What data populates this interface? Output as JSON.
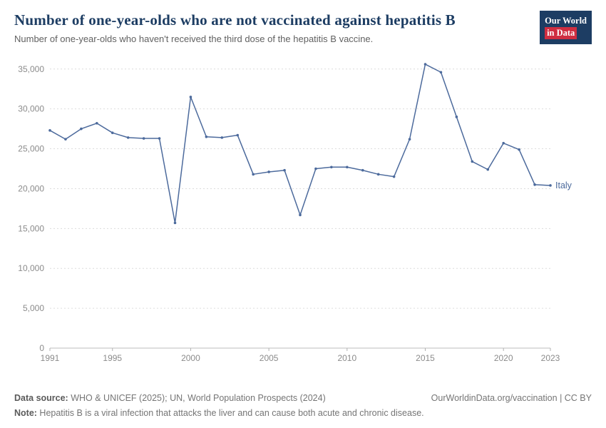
{
  "header": {
    "title": "Number of one-year-olds who are not vaccinated against hepatitis B",
    "subtitle": "Number of one-year-olds who haven't received the third dose of the hepatitis B vaccine.",
    "logo": {
      "line1": "Our World",
      "line2": "in Data",
      "bg": "#1d3d63",
      "accent": "#cf2e41"
    }
  },
  "chart_data": {
    "type": "line",
    "title": "Number of one-year-olds who are not vaccinated against hepatitis B",
    "xlabel": "",
    "ylabel": "",
    "xlim": [
      1991,
      2023
    ],
    "ylim": [
      0,
      36500
    ],
    "x_ticks": [
      1991,
      1995,
      2000,
      2005,
      2010,
      2015,
      2020,
      2023
    ],
    "y_ticks": [
      0,
      5000,
      10000,
      15000,
      20000,
      25000,
      30000,
      35000
    ],
    "grid": "horizontal-dashed",
    "legend_position": "end-of-line",
    "series": [
      {
        "name": "Italy",
        "color": "#4c6a9c",
        "x": [
          1991,
          1992,
          1993,
          1994,
          1995,
          1996,
          1997,
          1998,
          1999,
          2000,
          2001,
          2002,
          2003,
          2004,
          2005,
          2006,
          2007,
          2008,
          2009,
          2010,
          2011,
          2012,
          2013,
          2014,
          2015,
          2016,
          2017,
          2018,
          2019,
          2020,
          2021,
          2022,
          2023
        ],
        "values": [
          27300,
          26200,
          27500,
          28200,
          27000,
          26400,
          26300,
          26300,
          15700,
          31500,
          26500,
          26400,
          26700,
          21800,
          22100,
          22300,
          16700,
          22500,
          22700,
          22700,
          22300,
          21800,
          21500,
          26200,
          35600,
          34600,
          29000,
          23400,
          22400,
          25700,
          24900,
          20500,
          20400
        ]
      }
    ]
  },
  "footer": {
    "source_label": "Data source:",
    "source_text": " WHO & UNICEF (2025); UN, World Population Prospects (2024)",
    "link_text": "OurWorldinData.org/vaccination | CC BY",
    "note_label": "Note:",
    "note_text": " Hepatitis B is a viral infection that attacks the liver and can cause both acute and chronic disease."
  }
}
